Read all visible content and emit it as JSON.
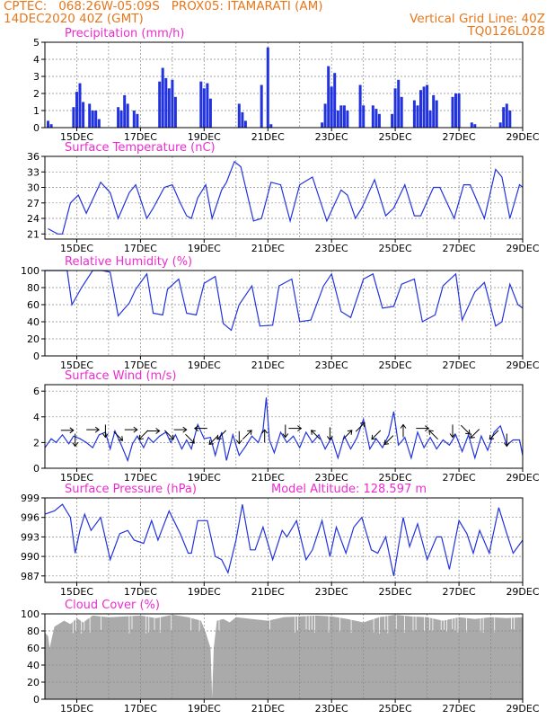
{
  "header": {
    "line1": "CPTEC:   068:26W-05:09S   PROX05: ITAMARATI (AM)",
    "line2_left": "14DEC2020 40Z (GMT)",
    "line2_right": "Vertical Grid Line: 40Z",
    "line3_right": "TQ0126L028"
  },
  "colors": {
    "header": "#e8771a",
    "title": "#ee2bd0",
    "series": "#2233dd",
    "cloud": "#aaaaaa",
    "grid": "#888888",
    "axis": "#000000"
  },
  "chart_data": [
    {
      "id": "precip",
      "type": "bar",
      "title": "Precipitation (mm/h)",
      "ylim": [
        0,
        5
      ],
      "yticks": [
        0,
        1,
        2,
        3,
        4,
        5
      ],
      "xlim": [
        14.0,
        29.0
      ],
      "xticks": [
        15,
        17,
        19,
        21,
        23,
        25,
        27,
        29
      ],
      "xtick_labels": [
        "15DEC",
        "17DEC",
        "19DEC",
        "21DEC",
        "23DEC",
        "25DEC",
        "27DEC",
        "29DEC"
      ],
      "x_units": "days of December 2020",
      "x": [
        14.1,
        14.2,
        14.9,
        15.0,
        15.1,
        15.2,
        15.4,
        15.5,
        15.6,
        15.7,
        16.3,
        16.4,
        16.5,
        16.6,
        16.8,
        16.9,
        17.6,
        17.7,
        17.8,
        17.9,
        18.0,
        18.1,
        18.9,
        19.0,
        19.1,
        19.2,
        20.1,
        20.2,
        20.3,
        20.8,
        21.0,
        21.1,
        22.7,
        22.8,
        22.9,
        23.0,
        23.1,
        23.2,
        23.3,
        23.4,
        23.5,
        23.9,
        24.0,
        24.3,
        24.4,
        24.5,
        24.9,
        25.0,
        25.1,
        25.2,
        25.6,
        25.7,
        25.8,
        25.9,
        26.0,
        26.1,
        26.2,
        26.3,
        26.8,
        26.9,
        27.0,
        27.4,
        27.5,
        28.3,
        28.4,
        28.5,
        28.6
      ],
      "values": [
        0.4,
        0.2,
        1.2,
        2.1,
        2.6,
        1.5,
        1.4,
        1.0,
        1.0,
        0.5,
        1.2,
        1.0,
        1.9,
        1.4,
        1.0,
        0.8,
        2.7,
        3.5,
        2.9,
        2.3,
        2.8,
        1.8,
        2.7,
        2.3,
        2.6,
        1.7,
        1.4,
        0.9,
        0.4,
        2.5,
        4.7,
        0.2,
        0.3,
        1.4,
        3.6,
        2.4,
        3.2,
        1.0,
        1.3,
        1.3,
        1.0,
        2.5,
        1.3,
        1.3,
        1.1,
        0.8,
        0.8,
        2.3,
        2.8,
        1.8,
        1.6,
        1.3,
        2.2,
        2.4,
        2.5,
        1.0,
        1.9,
        1.6,
        1.8,
        2.0,
        2.0,
        0.3,
        0.2,
        0.3,
        1.2,
        1.4,
        1.0
      ]
    },
    {
      "id": "temp",
      "type": "line",
      "title": "Surface Temperature (nC)",
      "ylim": [
        20,
        36
      ],
      "yticks": [
        21,
        24,
        27,
        30,
        33,
        36
      ],
      "xlim": [
        14.0,
        29.0
      ],
      "xticks": [
        15,
        17,
        19,
        21,
        23,
        25,
        27,
        29
      ],
      "xtick_labels": [
        "15DEC",
        "17DEC",
        "19DEC",
        "21DEC",
        "23DEC",
        "25DEC",
        "27DEC",
        "29DEC"
      ],
      "x": [
        14.1,
        14.4,
        14.55,
        14.8,
        15.05,
        15.3,
        15.75,
        16.05,
        16.3,
        16.65,
        16.85,
        17.2,
        17.4,
        17.75,
        18.0,
        18.25,
        18.45,
        18.6,
        18.8,
        19.05,
        19.25,
        19.55,
        19.7,
        19.95,
        20.15,
        20.55,
        20.8,
        21.1,
        21.4,
        21.7,
        22.0,
        22.4,
        22.85,
        23.0,
        23.3,
        23.5,
        23.75,
        23.95,
        24.35,
        24.7,
        24.95,
        25.3,
        25.6,
        25.8,
        26.2,
        26.4,
        26.85,
        27.15,
        27.35,
        27.8,
        28.15,
        28.35,
        28.6,
        28.9,
        29.0
      ],
      "y": [
        22.0,
        21.0,
        21.0,
        27.0,
        28.5,
        25.0,
        31.0,
        29.0,
        24.0,
        29.0,
        30.5,
        24.0,
        26.0,
        30.0,
        30.5,
        27.0,
        24.5,
        24.0,
        28.0,
        30.5,
        24.0,
        29.5,
        31.0,
        35.0,
        34.0,
        23.5,
        24.0,
        31.0,
        30.5,
        23.5,
        30.5,
        32.0,
        23.5,
        25.5,
        29.5,
        28.5,
        24.0,
        26.0,
        31.5,
        24.5,
        26.0,
        30.5,
        24.5,
        24.5,
        30.0,
        30.0,
        24.0,
        30.5,
        30.5,
        24.0,
        33.5,
        32.0,
        24.0,
        30.5,
        30.0
      ]
    },
    {
      "id": "humid",
      "type": "line",
      "title": "Relative Humidity (%)",
      "ylim": [
        0,
        100
      ],
      "yticks": [
        0,
        20,
        40,
        60,
        80,
        100
      ],
      "xlim": [
        14.0,
        29.0
      ],
      "xticks": [
        15,
        17,
        19,
        21,
        23,
        25,
        27,
        29
      ],
      "xtick_labels": [
        "15DEC",
        "17DEC",
        "19DEC",
        "21DEC",
        "23DEC",
        "25DEC",
        "27DEC",
        "29DEC"
      ],
      "x": [
        14.0,
        14.4,
        14.7,
        14.85,
        15.15,
        15.5,
        15.8,
        16.05,
        16.3,
        16.65,
        16.85,
        17.2,
        17.4,
        17.7,
        17.85,
        18.2,
        18.45,
        18.75,
        19.0,
        19.35,
        19.6,
        19.85,
        20.1,
        20.5,
        20.75,
        21.15,
        21.35,
        21.75,
        22.0,
        22.35,
        22.75,
        23.0,
        23.3,
        23.6,
        24.0,
        24.3,
        24.6,
        24.95,
        25.2,
        25.6,
        25.85,
        26.25,
        26.5,
        26.9,
        27.1,
        27.5,
        27.8,
        28.15,
        28.35,
        28.6,
        28.85,
        29.0
      ],
      "y": [
        100.0,
        100.0,
        100.0,
        60.0,
        80.0,
        100.0,
        100.0,
        98.0,
        47.0,
        62.0,
        78.0,
        96.0,
        50.0,
        48.0,
        78.0,
        90.0,
        50.0,
        48.0,
        85.0,
        93.0,
        38.0,
        30.0,
        60.0,
        82.0,
        35.0,
        36.0,
        82.0,
        90.0,
        40.0,
        42.0,
        82.0,
        96.0,
        52.0,
        45.0,
        90.0,
        96.0,
        56.0,
        58.0,
        84.0,
        90.0,
        40.0,
        48.0,
        82.0,
        96.0,
        42.0,
        75.0,
        86.0,
        35.0,
        40.0,
        84.0,
        60.0,
        56.0
      ]
    },
    {
      "id": "wind",
      "type": "line",
      "title": "Surface Wind (m/s)",
      "ylim": [
        0,
        6.5
      ],
      "yticks": [
        0,
        2,
        4,
        6
      ],
      "xlim": [
        14.0,
        29.0
      ],
      "xticks": [
        15,
        17,
        19,
        21,
        23,
        25,
        27,
        29
      ],
      "xtick_labels": [
        "15DEC",
        "17DEC",
        "19DEC",
        "21DEC",
        "23DEC",
        "25DEC",
        "27DEC",
        "29DEC"
      ],
      "x": [
        14.0,
        14.2,
        14.35,
        14.55,
        14.75,
        14.9,
        15.1,
        15.3,
        15.5,
        15.7,
        15.9,
        16.05,
        16.2,
        16.4,
        16.6,
        16.75,
        16.9,
        17.1,
        17.25,
        17.4,
        17.6,
        17.8,
        17.95,
        18.1,
        18.3,
        18.45,
        18.6,
        18.8,
        19.0,
        19.2,
        19.35,
        19.55,
        19.7,
        19.9,
        20.1,
        20.3,
        20.5,
        20.7,
        20.85,
        20.95,
        21.05,
        21.2,
        21.4,
        21.6,
        21.8,
        22.0,
        22.2,
        22.4,
        22.6,
        22.8,
        23.0,
        23.2,
        23.4,
        23.6,
        23.8,
        24.0,
        24.2,
        24.4,
        24.6,
        24.8,
        24.95,
        25.1,
        25.3,
        25.5,
        25.7,
        25.9,
        26.1,
        26.3,
        26.5,
        26.7,
        26.9,
        27.1,
        27.3,
        27.5,
        27.7,
        27.9,
        28.1,
        28.3,
        28.5,
        28.7,
        28.9,
        29.0
      ],
      "y": [
        1.6,
        2.3,
        2.0,
        2.6,
        1.9,
        2.5,
        2.3,
        2.0,
        1.6,
        2.6,
        2.8,
        1.5,
        2.9,
        1.8,
        0.6,
        1.9,
        2.5,
        1.6,
        2.4,
        2.0,
        2.5,
        2.8,
        2.0,
        2.6,
        1.5,
        2.2,
        1.5,
        3.4,
        2.3,
        2.4,
        1.0,
        2.8,
        0.6,
        2.6,
        1.0,
        1.7,
        2.5,
        2.0,
        3.0,
        5.5,
        2.2,
        1.2,
        2.8,
        2.0,
        2.5,
        1.6,
        2.8,
        2.0,
        2.6,
        1.5,
        2.4,
        0.8,
        2.5,
        1.5,
        2.4,
        3.8,
        1.5,
        2.3,
        1.6,
        2.6,
        4.4,
        1.8,
        2.4,
        0.8,
        2.8,
        1.6,
        2.4,
        1.5,
        2.2,
        1.8,
        2.6,
        1.3,
        2.6,
        0.8,
        2.5,
        1.4,
        2.8,
        3.3,
        1.8,
        2.2,
        2.2,
        1.0
      ],
      "arrows": [
        {
          "x": 14.7,
          "y": 2.95,
          "dir": "E"
        },
        {
          "x": 14.95,
          "y": 2.2,
          "dir": "S"
        },
        {
          "x": 15.5,
          "y": 3.0,
          "dir": "E"
        },
        {
          "x": 15.9,
          "y": 2.9,
          "dir": "S"
        },
        {
          "x": 16.3,
          "y": 2.5,
          "dir": "SE"
        },
        {
          "x": 16.7,
          "y": 3.0,
          "dir": "E"
        },
        {
          "x": 17.1,
          "y": 2.6,
          "dir": "SW"
        },
        {
          "x": 17.4,
          "y": 2.9,
          "dir": "E"
        },
        {
          "x": 17.9,
          "y": 2.6,
          "dir": "SE"
        },
        {
          "x": 18.25,
          "y": 3.0,
          "dir": "E"
        },
        {
          "x": 18.55,
          "y": 2.3,
          "dir": "SE"
        },
        {
          "x": 18.9,
          "y": 3.1,
          "dir": "W"
        },
        {
          "x": 19.3,
          "y": 2.2,
          "dir": "SW"
        },
        {
          "x": 19.55,
          "y": 2.6,
          "dir": "SW"
        },
        {
          "x": 20.1,
          "y": 2.4,
          "dir": "S"
        },
        {
          "x": 20.35,
          "y": 2.6,
          "dir": "NE"
        },
        {
          "x": 20.9,
          "y": 2.5,
          "dir": "N"
        },
        {
          "x": 21.55,
          "y": 2.9,
          "dir": "S"
        },
        {
          "x": 21.85,
          "y": 3.1,
          "dir": "E"
        },
        {
          "x": 22.5,
          "y": 2.6,
          "dir": "NW"
        },
        {
          "x": 22.95,
          "y": 2.7,
          "dir": "S"
        },
        {
          "x": 23.5,
          "y": 2.6,
          "dir": "NE"
        },
        {
          "x": 23.9,
          "y": 3.2,
          "dir": "NE"
        },
        {
          "x": 24.4,
          "y": 2.6,
          "dir": "SW"
        },
        {
          "x": 24.8,
          "y": 2.2,
          "dir": "SW"
        },
        {
          "x": 25.25,
          "y": 2.9,
          "dir": "N"
        },
        {
          "x": 25.85,
          "y": 3.1,
          "dir": "E"
        },
        {
          "x": 26.2,
          "y": 2.6,
          "dir": "NW"
        },
        {
          "x": 26.8,
          "y": 2.9,
          "dir": "S"
        },
        {
          "x": 27.2,
          "y": 3.0,
          "dir": "SE"
        },
        {
          "x": 27.5,
          "y": 2.7,
          "dir": "SW"
        },
        {
          "x": 28.1,
          "y": 2.6,
          "dir": "SW"
        },
        {
          "x": 28.5,
          "y": 2.2,
          "dir": "S"
        }
      ]
    },
    {
      "id": "press",
      "type": "line",
      "title": "Surface Pressure (hPa)",
      "annotation": "Model Altitude: 128.597 m",
      "ylim": [
        986,
        999
      ],
      "yticks": [
        987,
        990,
        993,
        996,
        999
      ],
      "xlim": [
        14.0,
        29.0
      ],
      "xticks": [
        15,
        17,
        19,
        21,
        23,
        25,
        27,
        29
      ],
      "xtick_labels": [
        "15DEC",
        "17DEC",
        "19DEC",
        "21DEC",
        "23DEC",
        "25DEC",
        "27DEC",
        "29DEC"
      ],
      "x": [
        14.0,
        14.3,
        14.55,
        14.8,
        14.95,
        15.1,
        15.25,
        15.45,
        15.75,
        16.05,
        16.35,
        16.6,
        16.8,
        17.1,
        17.35,
        17.55,
        17.9,
        18.25,
        18.5,
        18.6,
        18.8,
        19.1,
        19.35,
        19.55,
        19.75,
        20.0,
        20.2,
        20.45,
        20.6,
        20.85,
        21.15,
        21.45,
        21.6,
        21.9,
        22.2,
        22.4,
        22.7,
        22.95,
        23.15,
        23.45,
        23.7,
        23.95,
        24.25,
        24.45,
        24.7,
        24.95,
        25.25,
        25.45,
        25.7,
        26.0,
        26.3,
        26.45,
        26.7,
        27.0,
        27.25,
        27.45,
        27.65,
        27.95,
        28.25,
        28.5,
        28.7,
        29.0
      ],
      "y": [
        996.5,
        997.0,
        998.0,
        996.0,
        990.5,
        994.0,
        996.5,
        994.0,
        996.0,
        989.5,
        993.5,
        994.0,
        992.5,
        992.0,
        995.5,
        992.5,
        997.0,
        993.5,
        990.5,
        990.5,
        995.5,
        995.5,
        990.0,
        989.5,
        987.5,
        992.5,
        998.0,
        991.0,
        991.0,
        994.5,
        989.5,
        994.0,
        993.0,
        995.5,
        989.5,
        991.0,
        995.5,
        990.0,
        994.5,
        990.5,
        994.5,
        996.0,
        991.0,
        990.5,
        993.0,
        987.0,
        996.0,
        991.5,
        995.0,
        989.5,
        993.0,
        993.0,
        988.0,
        995.5,
        993.5,
        990.5,
        994.0,
        990.5,
        997.5,
        993.5,
        990.5,
        992.5
      ]
    },
    {
      "id": "cloud",
      "type": "area",
      "title": "Cloud Cover (%)",
      "ylim": [
        0,
        100
      ],
      "yticks": [
        0,
        20,
        40,
        60,
        80,
        100
      ],
      "xlim": [
        14.0,
        29.0
      ],
      "xticks": [
        15,
        17,
        19,
        21,
        23,
        25,
        27,
        29
      ],
      "xtick_labels": [
        "15DEC",
        "17DEC",
        "19DEC",
        "21DEC",
        "23DEC",
        "25DEC",
        "27DEC",
        "29DEC"
      ],
      "x": [
        14.0,
        14.1,
        14.15,
        14.3,
        14.6,
        14.8,
        15.0,
        15.2,
        15.5,
        16.0,
        16.5,
        17.0,
        17.5,
        18.0,
        18.5,
        18.9,
        19.05,
        19.2,
        19.25,
        19.3,
        19.4,
        19.6,
        19.8,
        20.0,
        20.5,
        21.0,
        21.5,
        22.0,
        22.5,
        23.0,
        23.5,
        24.0,
        24.5,
        25.0,
        25.5,
        26.0,
        26.5,
        27.0,
        27.5,
        28.0,
        28.5,
        29.0
      ],
      "y": [
        78,
        74,
        60,
        85,
        92,
        88,
        95,
        90,
        98,
        96,
        97,
        98,
        95,
        99,
        96,
        92,
        78,
        60,
        2,
        60,
        92,
        94,
        90,
        96,
        94,
        92,
        96,
        97,
        98,
        97,
        94,
        90,
        96,
        99,
        97,
        96,
        92,
        96,
        94,
        96,
        95,
        96
      ]
    }
  ]
}
